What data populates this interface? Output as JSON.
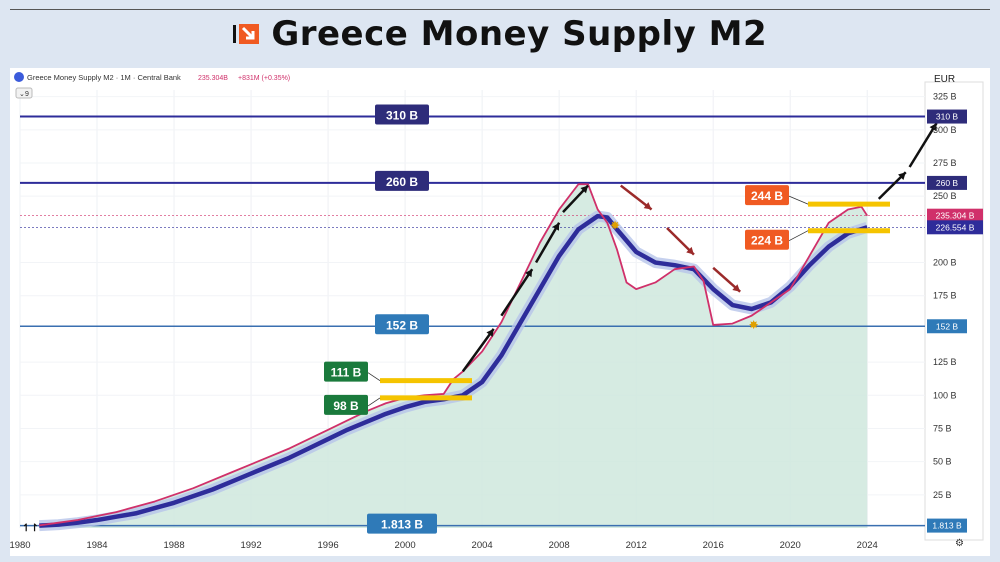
{
  "header": {
    "title": "Greece Money Supply M2"
  },
  "chart_header": {
    "series_label": "Greece Money Supply M2 · 1M · Central Bank",
    "last_value": "235.304B",
    "change": "+831M (+0.35%)",
    "currency": "EUR",
    "interval_badge": "9"
  },
  "chart_data": {
    "type": "line",
    "ylabel": "",
    "xlabel": "",
    "ylim": [
      0,
      330
    ],
    "xlim": [
      1980,
      2027
    ],
    "x_ticks": [
      "1980",
      "1984",
      "1988",
      "1992",
      "1996",
      "2000",
      "2004",
      "2008",
      "2012",
      "2016",
      "2020",
      "2024"
    ],
    "y_ticks": [
      "325 B",
      "300 B",
      "275 B",
      "250 B",
      "200 B",
      "175 B",
      "125 B",
      "100 B",
      "75 B",
      "50 B",
      "25 B"
    ],
    "series": [
      {
        "color": "#d0306a",
        "x": [
          1981,
          1982,
          1983,
          1984,
          1985,
          1986,
          1987,
          1988,
          1989,
          1990,
          1991,
          1992,
          1993,
          1994,
          1995,
          1996,
          1997,
          1998,
          1999,
          2000,
          2001,
          2002,
          2002.5,
          2003,
          2004,
          2005,
          2006,
          2007,
          2008,
          2009,
          2009.5,
          2010,
          2010.5,
          2011,
          2011.5,
          2012,
          2013,
          2014,
          2015,
          2015.5,
          2016,
          2017,
          2018,
          2019,
          2020,
          2021,
          2022,
          2023,
          2023.7,
          2024
        ],
        "values": [
          2,
          4,
          6,
          9,
          12,
          16,
          20,
          25,
          30,
          36,
          42,
          48,
          54,
          60,
          67,
          74,
          81,
          88,
          94,
          98,
          100,
          101,
          112,
          118,
          133,
          155,
          185,
          215,
          240,
          259,
          259,
          240,
          230,
          210,
          185,
          180,
          185,
          195,
          197,
          186,
          153,
          154,
          160,
          170,
          180,
          205,
          230,
          240,
          242,
          235.304
        ]
      },
      {
        "color": "#2e2c9a",
        "x": [
          1981,
          1982,
          1983,
          1984,
          1985,
          1986,
          1987,
          1988,
          1989,
          1990,
          1991,
          1992,
          1993,
          1994,
          1995,
          1996,
          1997,
          1998,
          1999,
          2000,
          2001,
          2002,
          2003,
          2004,
          2005,
          2006,
          2007,
          2008,
          2009,
          2010,
          2010.5,
          2011,
          2012,
          2013,
          2014,
          2015,
          2016,
          2017,
          2018,
          2019,
          2020,
          2021,
          2022,
          2023,
          2024
        ],
        "values": [
          1.813,
          2.5,
          4,
          6,
          8.5,
          11,
          15,
          19,
          24,
          29,
          35,
          41,
          47,
          53,
          60,
          67,
          74,
          80,
          86,
          91,
          95,
          97,
          100,
          110,
          130,
          155,
          180,
          205,
          225,
          235,
          234,
          225,
          208,
          200,
          198,
          195,
          180,
          168,
          165,
          170,
          182,
          198,
          212,
          222,
          226.554
        ]
      }
    ],
    "levels": [
      {
        "label": "310 B",
        "value": 310,
        "axis_label": "310 B"
      },
      {
        "label": "260 B",
        "value": 260,
        "axis_label": "260 B"
      },
      {
        "label": "152 B",
        "value": 152,
        "axis_label": "152 B"
      },
      {
        "label": "1.813 B",
        "value": 1.813,
        "axis_label": "1.813 B"
      }
    ],
    "price_tags": [
      {
        "label": "235.304 B",
        "value": 235.304,
        "color": "#d0306a"
      },
      {
        "label": "226.554 B",
        "value": 226.554,
        "color": "#2e2c9a"
      }
    ],
    "annotations": [
      {
        "label": "244 B",
        "value": 244,
        "color": "#f05a22"
      },
      {
        "label": "224 B",
        "value": 224,
        "color": "#f05a22"
      },
      {
        "label": "111 B",
        "value": 111,
        "color": "#1a7a3c"
      },
      {
        "label": "98 B",
        "value": 98,
        "color": "#1a7a3c"
      }
    ]
  }
}
